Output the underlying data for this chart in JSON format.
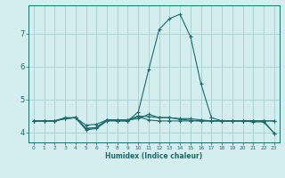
{
  "xlabel": "Humidex (Indice chaleur)",
  "background_color": "#d4eeef",
  "grid_color": "#aed4d5",
  "line_color": "#1a6b6b",
  "xlim": [
    -0.5,
    23.5
  ],
  "ylim": [
    3.7,
    7.85
  ],
  "yticks": [
    4,
    5,
    6,
    7
  ],
  "xticks": [
    0,
    1,
    2,
    3,
    4,
    5,
    6,
    7,
    8,
    9,
    10,
    11,
    12,
    13,
    14,
    15,
    16,
    17,
    18,
    19,
    20,
    21,
    22,
    23
  ],
  "series": [
    [
      4.35,
      4.35,
      4.35,
      4.42,
      4.45,
      4.22,
      4.25,
      4.38,
      4.38,
      4.38,
      4.42,
      4.55,
      4.45,
      4.45,
      4.4,
      4.37,
      4.35,
      4.35,
      4.35,
      4.35,
      4.35,
      4.35,
      4.35,
      4.35
    ],
    [
      4.35,
      4.35,
      4.35,
      4.42,
      4.45,
      4.08,
      4.12,
      4.35,
      4.35,
      4.35,
      4.48,
      4.38,
      4.35,
      4.35,
      4.35,
      4.35,
      4.35,
      4.35,
      4.35,
      4.35,
      4.35,
      4.35,
      4.35,
      3.98
    ],
    [
      4.35,
      4.35,
      4.35,
      4.45,
      4.45,
      4.12,
      4.15,
      4.38,
      4.38,
      4.38,
      4.5,
      4.48,
      4.45,
      4.45,
      4.42,
      4.42,
      4.38,
      4.35,
      4.35,
      4.35,
      4.35,
      4.32,
      4.32,
      3.98
    ],
    [
      4.35,
      4.35,
      4.35,
      4.42,
      4.45,
      4.12,
      4.15,
      4.38,
      4.35,
      4.35,
      4.62,
      5.9,
      7.12,
      7.45,
      7.58,
      6.9,
      5.48,
      4.45,
      4.35,
      4.35,
      4.35,
      4.35,
      4.35,
      4.35
    ]
  ]
}
